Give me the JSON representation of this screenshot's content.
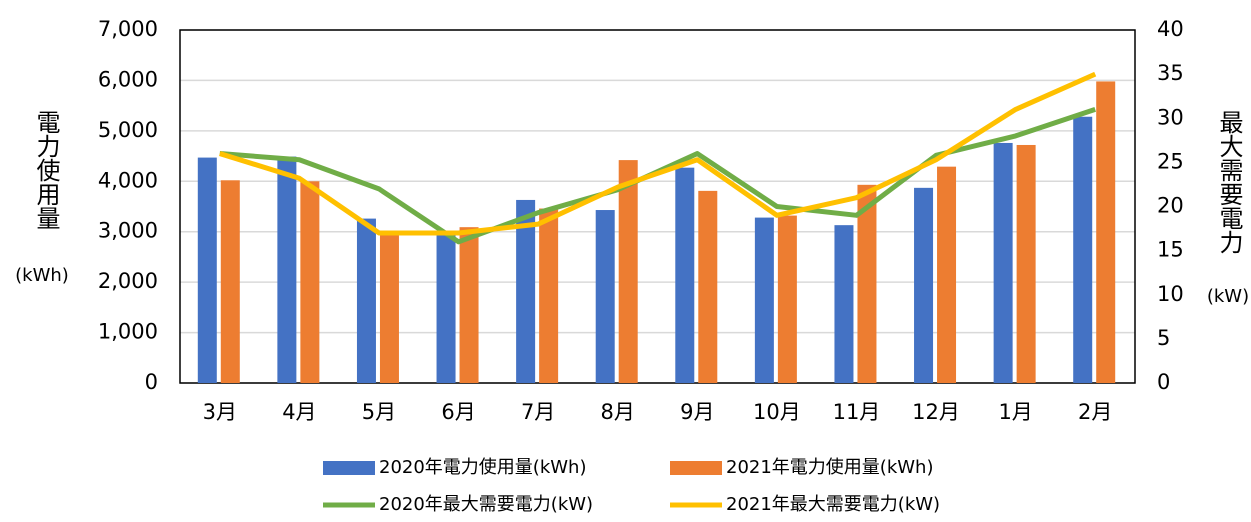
{
  "chart_data": {
    "type": "bar",
    "y_label": "電力使用量",
    "y_label_unit": "(kWh)",
    "y2_label": "最大需要電力",
    "y2_label_unit": "(kW)",
    "categories": [
      "3月",
      "4月",
      "5月",
      "6月",
      "7月",
      "8月",
      "9月",
      "10月",
      "11月",
      "12月",
      "1月",
      "2月"
    ],
    "series": [
      {
        "name": "2020年電力使用量(kWh)",
        "type": "bar",
        "color": "#4472c4",
        "values": [
          4470,
          4490,
          3260,
          2950,
          3630,
          3430,
          4270,
          3280,
          3130,
          3870,
          4760,
          5280
        ]
      },
      {
        "name": "2021年電力使用量(kWh)",
        "type": "bar",
        "color": "#ed7d31",
        "values": [
          4020,
          4000,
          2980,
          3090,
          3460,
          4420,
          3810,
          3320,
          3930,
          4290,
          4720,
          5980
        ]
      },
      {
        "name": "2020年最大需要電力(kW)",
        "type": "line",
        "axis": "y2",
        "color": "#70ad47",
        "values": [
          26,
          25.3,
          22,
          16,
          19.3,
          21.9,
          26,
          20,
          19,
          25.8,
          28,
          31
        ]
      },
      {
        "name": "2021年最大需要電力(kW)",
        "type": "line",
        "axis": "y2",
        "color": "#ffc000",
        "values": [
          26,
          23.2,
          17,
          17,
          18,
          22.2,
          25.3,
          19,
          21,
          25.3,
          31,
          35
        ]
      }
    ],
    "ylim": [
      0,
      7000
    ],
    "yticks": [
      0,
      {
        "value": 1000,
        "label": "1,000"
      },
      {
        "value": 2000,
        "label": "2,000"
      },
      {
        "value": 3000,
        "label": "3,000"
      },
      {
        "value": 4000,
        "label": "4,000"
      },
      {
        "value": 5000,
        "label": "5,000"
      },
      {
        "value": 6000,
        "label": "6,000"
      },
      {
        "value": 7000,
        "label": "7,000"
      }
    ],
    "y2lim": [
      0,
      40
    ],
    "y2ticks": [
      0,
      5,
      10,
      15,
      20,
      25,
      30,
      35,
      40
    ],
    "grid": true,
    "legend": "bottom"
  }
}
